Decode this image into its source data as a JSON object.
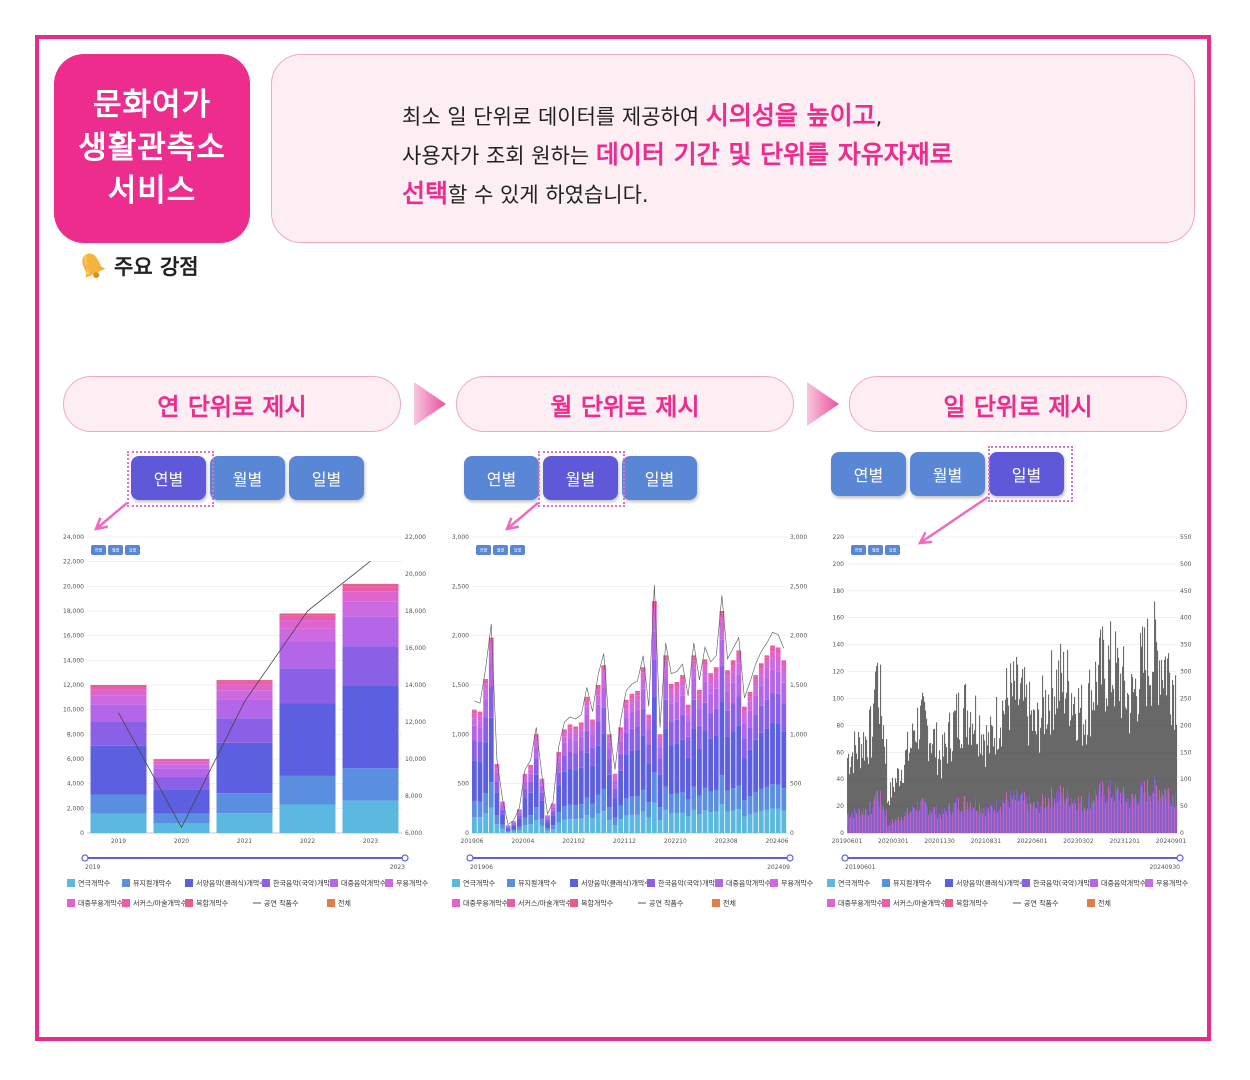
{
  "title": [
    "문화여가",
    "생활관측소",
    "서비스"
  ],
  "strength_label": "주요 강점",
  "description": {
    "line1_a": "최소 일 단위로 데이터를 제공하여 ",
    "line1_hl": "시의성을 높이고",
    "line1_b": ",",
    "line2_a": "사용자가 조회 원하는 ",
    "line2_hl": "데이터 기간 및 단위를 자유자재로",
    "line3_hl": "선택",
    "line3_b": "할 수 있게 하였습니다."
  },
  "steps": [
    "연 단위로 제시",
    "월 단위로 제시",
    "일 단위로 제시"
  ],
  "period_buttons": [
    "연별",
    "월별",
    "일별"
  ],
  "legend": [
    "연극개막수",
    "뮤지컬개막수",
    "서양음악(클래식)개막수",
    "한국음악(국악)개막수",
    "대중음악개막수",
    "무용개막수",
    "대중무용개막수",
    "서커스/마술개막수",
    "복합개막수",
    "공연 작품수",
    "전체"
  ],
  "colors": {
    "accent": "#ec2d8e",
    "button": "#5a86d6",
    "button_active": "#5f59d9",
    "series": [
      "#5bb8e0",
      "#5a8ee0",
      "#5c5fe0",
      "#8a60e6",
      "#b466e8",
      "#cc6ae2",
      "#de64d0",
      "#ea5dab",
      "#e75b8f",
      "#555555",
      "#e37b4a"
    ]
  },
  "chart_data": [
    {
      "type": "bar",
      "title": "연별",
      "categories": [
        "2019",
        "2020",
        "2021",
        "2022",
        "2023"
      ],
      "y_left_ticks": [
        "0",
        "2,000",
        "4,000",
        "6,000",
        "8,000",
        "10,000",
        "12,000",
        "14,000",
        "16,000",
        "18,000",
        "20,000",
        "22,000",
        "24,000"
      ],
      "y_right_ticks": [
        "6,000",
        "8,000",
        "10,000",
        "12,000",
        "14,000",
        "16,000",
        "18,000",
        "20,000",
        "22,000"
      ],
      "ylim": [
        0,
        24000
      ],
      "y2lim": [
        6000,
        22000
      ],
      "stacked_totals": [
        12000,
        6000,
        12400,
        17800,
        20200
      ],
      "line_series": {
        "name": "공연 작품수",
        "values": [
          12500,
          6300,
          13100,
          18000,
          20700
        ]
      },
      "range_labels": [
        "2019",
        "2023"
      ]
    },
    {
      "type": "bar",
      "title": "월별",
      "x_tick_labels": [
        "201906",
        "202004",
        "202102",
        "202112",
        "202210",
        "202308",
        "202406"
      ],
      "y_left_ticks": [
        "0",
        "500",
        "1,000",
        "1,500",
        "2,000",
        "2,500",
        "3,000"
      ],
      "y_right_ticks": [
        "0",
        "500",
        "1,000",
        "1,500",
        "2,000",
        "2,500",
        "3,000"
      ],
      "ylim": [
        0,
        3000
      ],
      "stacked_totals": [
        1250,
        1230,
        1560,
        1980,
        700,
        320,
        80,
        120,
        240,
        600,
        690,
        1000,
        550,
        180,
        300,
        820,
        1050,
        1100,
        1080,
        1120,
        1380,
        1150,
        1500,
        1700,
        1000,
        600,
        1070,
        1350,
        1410,
        1440,
        1680,
        1200,
        2350,
        1000,
        1800,
        1510,
        1530,
        1600,
        1300,
        1800,
        1450,
        1760,
        1620,
        1680,
        2250,
        1650,
        1750,
        1850,
        1280,
        1430,
        1600,
        1720,
        1800,
        1900,
        1880,
        1750
      ],
      "range_labels": [
        "201906",
        "202409"
      ]
    },
    {
      "type": "bar",
      "title": "일별",
      "x_tick_labels": [
        "20190601",
        "20200301",
        "20201130",
        "20210831",
        "20220601",
        "20230302",
        "20231201",
        "20240901"
      ],
      "y_left_ticks": [
        "0",
        "20",
        "40",
        "60",
        "80",
        "100",
        "120",
        "140",
        "160",
        "180",
        "200",
        "220"
      ],
      "y_right_ticks": [
        "0",
        "50",
        "100",
        "150",
        "200",
        "250",
        "300",
        "350",
        "400",
        "450",
        "500",
        "550"
      ],
      "ylim": [
        0,
        220
      ],
      "range_labels": [
        "20190601",
        "20240930"
      ]
    }
  ]
}
